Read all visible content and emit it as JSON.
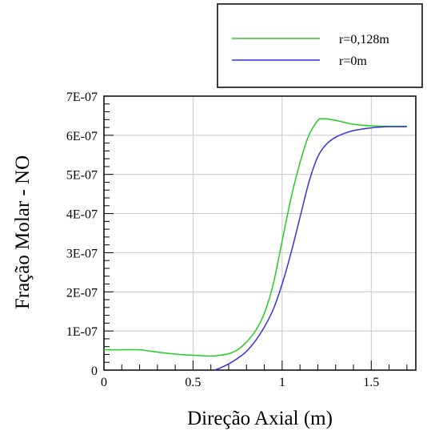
{
  "chart_data": {
    "type": "line",
    "title": "",
    "xlabel": "Direção Axial (m)",
    "ylabel": "Fração Molar - NO",
    "xlim": [
      0,
      1.75
    ],
    "ylim": [
      0,
      7e-07
    ],
    "grid": true,
    "legend_position": "top-right",
    "x_ticks": [
      0,
      0.5,
      1,
      1.5
    ],
    "x_tick_labels": [
      "0",
      "0.5",
      "1",
      "1.5"
    ],
    "y_ticks": [
      0,
      1e-07,
      2e-07,
      3e-07,
      4e-07,
      5e-07,
      6e-07,
      7e-07
    ],
    "y_tick_labels": [
      "0",
      "1E-07",
      "2E-07",
      "3E-07",
      "4E-07",
      "5E-07",
      "6E-07",
      "7E-07"
    ],
    "series": [
      {
        "name": "r=0,128m",
        "color": "#22cc22",
        "x": [
          0,
          0.1,
          0.2,
          0.25,
          0.3,
          0.4,
          0.5,
          0.6,
          0.65,
          0.7,
          0.75,
          0.8,
          0.85,
          0.9,
          0.95,
          1.0,
          1.05,
          1.1,
          1.15,
          1.2,
          1.22,
          1.25,
          1.3,
          1.35,
          1.4,
          1.5,
          1.6,
          1.7
        ],
        "y": [
          5.2e-08,
          5.2e-08,
          5.2e-08,
          4.9e-08,
          4.6e-08,
          4.1e-08,
          3.8e-08,
          3.6e-08,
          3.8e-08,
          4.2e-08,
          5.2e-08,
          7.2e-08,
          1e-07,
          1.45e-07,
          2.2e-07,
          3.3e-07,
          4.4e-07,
          5.3e-07,
          6e-07,
          6.38e-07,
          6.42e-07,
          6.42e-07,
          6.38e-07,
          6.33e-07,
          6.28e-07,
          6.24e-07,
          6.23e-07,
          6.23e-07
        ]
      },
      {
        "name": "r=0m",
        "color": "#3333dd",
        "x": [
          0.62,
          0.65,
          0.7,
          0.75,
          0.8,
          0.85,
          0.9,
          0.95,
          1.0,
          1.05,
          1.1,
          1.15,
          1.2,
          1.25,
          1.3,
          1.35,
          1.4,
          1.45,
          1.5,
          1.55,
          1.6,
          1.65,
          1.7
        ],
        "y": [
          0,
          5e-09,
          1.6e-08,
          3e-08,
          4.8e-08,
          7.5e-08,
          1.1e-07,
          1.55e-07,
          2.2e-07,
          3e-07,
          3.9e-07,
          4.8e-07,
          5.45e-07,
          5.78e-07,
          5.95e-07,
          6.05e-07,
          6.12e-07,
          6.16e-07,
          6.19e-07,
          6.21e-07,
          6.22e-07,
          6.22e-07,
          6.22e-07
        ]
      }
    ]
  }
}
